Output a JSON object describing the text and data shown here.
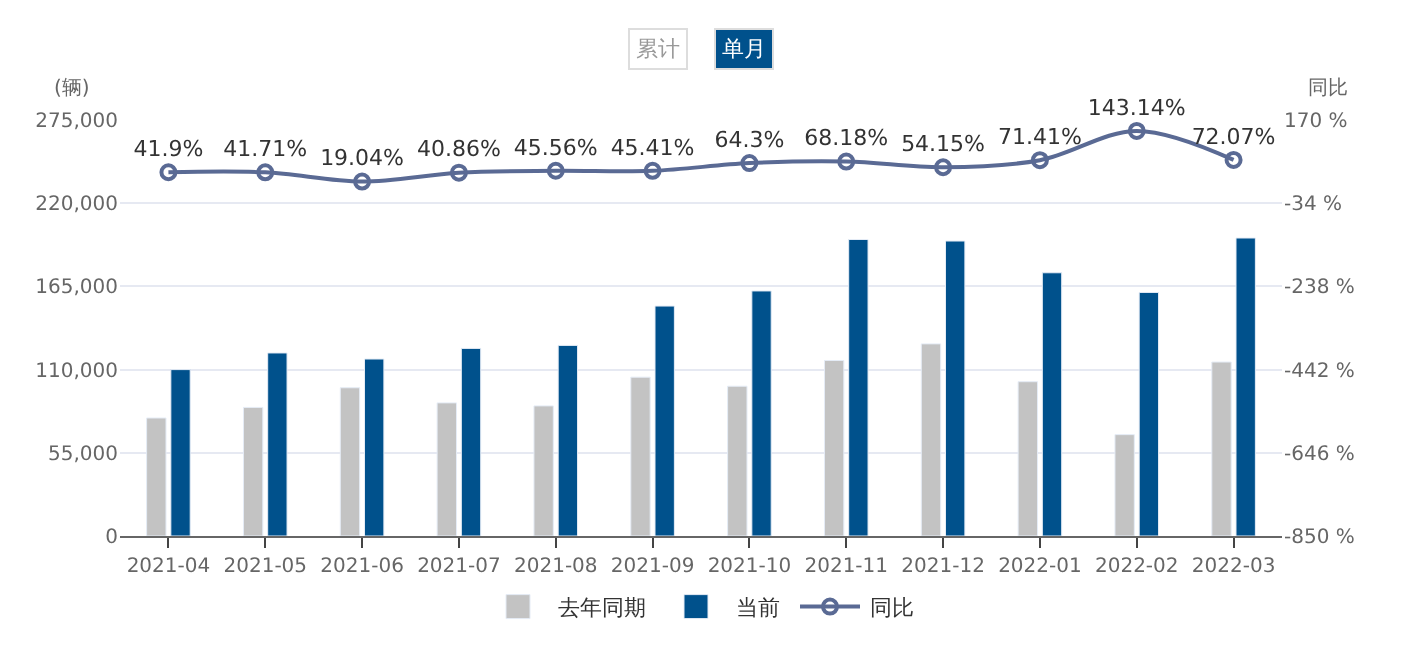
{
  "chart_data": {
    "type": "bar",
    "categories": [
      "2021-04",
      "2021-05",
      "2021-06",
      "2021-07",
      "2021-08",
      "2021-09",
      "2021-10",
      "2021-11",
      "2021-12",
      "2022-01",
      "2022-02",
      "2022-03"
    ],
    "series": [
      {
        "name": "去年同期",
        "color": "#c3c3c3",
        "values": [
          78000,
          85000,
          98000,
          88000,
          86000,
          105000,
          99000,
          116000,
          127000,
          102000,
          67000,
          115000
        ]
      },
      {
        "name": "当前",
        "color": "#00518c",
        "values": [
          110000,
          121000,
          117000,
          124000,
          126000,
          152000,
          162000,
          196000,
          195000,
          174000,
          161000,
          197000
        ]
      },
      {
        "name": "同比",
        "type": "line",
        "axis": "y2",
        "color": "#5a6a94",
        "marker": "circle",
        "values": [
          41.9,
          41.71,
          19.04,
          40.86,
          45.56,
          45.41,
          64.3,
          68.18,
          54.15,
          71.41,
          143.14,
          72.07
        ],
        "value_labels": [
          "41.9%",
          "41.71%",
          "19.04%",
          "40.86%",
          "45.56%",
          "45.41%",
          "64.3%",
          "68.18%",
          "54.15%",
          "71.41%",
          "143.14%",
          "72.07%"
        ]
      }
    ],
    "ylabel": "(辆)",
    "y2label": "同比",
    "ylim": [
      0,
      275000
    ],
    "yticks": [
      {
        "value": 0,
        "label": "0"
      },
      {
        "value": 55000,
        "label": "55,000"
      },
      {
        "value": 110000,
        "label": "110,000"
      },
      {
        "value": 165000,
        "label": "165,000"
      },
      {
        "value": 220000,
        "label": "220,000"
      },
      {
        "value": 275000,
        "label": "275,000"
      }
    ],
    "y2lim": [
      -850,
      170
    ],
    "y2ticks": [
      {
        "value": -850,
        "label": "-850 %"
      },
      {
        "value": -646,
        "label": "-646 %"
      },
      {
        "value": -442,
        "label": "-442 %"
      },
      {
        "value": -238,
        "label": "-238 %"
      },
      {
        "value": -34,
        "label": "-34 %"
      },
      {
        "value": 170,
        "label": "170 %"
      }
    ],
    "annotations": [
      "累计",
      "单月"
    ],
    "grid": "y",
    "legend": "bottom"
  }
}
